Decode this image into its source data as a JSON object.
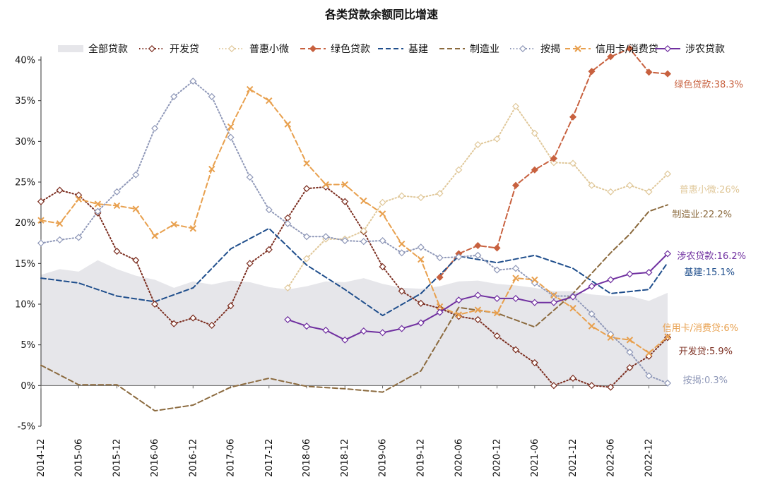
{
  "chart_data": {
    "type": "line",
    "title": "各类贷款余额同比增速",
    "xlabel": "",
    "ylabel": "",
    "ylim": [
      -5,
      40
    ],
    "y_ticks": [
      "-5%",
      "0%",
      "5%",
      "10%",
      "15%",
      "20%",
      "25%",
      "30%",
      "35%",
      "40%"
    ],
    "x_ticks": [
      "2014-12",
      "2015-06",
      "2015-12",
      "2016-06",
      "2016-12",
      "2017-06",
      "2017-12",
      "2018-06",
      "2018-12",
      "2019-06",
      "2019-12",
      "2020-06",
      "2020-12",
      "2021-06",
      "2021-12",
      "2022-06",
      "2022-12"
    ],
    "legend_position": "top",
    "grid": false,
    "series": [
      {
        "name": "全部贷款",
        "style": "area",
        "color": "#e6e6ea",
        "points": [
          [
            "2014-12",
            13.6
          ],
          [
            "2015-03",
            14.3
          ],
          [
            "2015-06",
            14.0
          ],
          [
            "2015-09",
            15.4
          ],
          [
            "2015-12",
            14.3
          ],
          [
            "2016-03",
            13.5
          ],
          [
            "2016-06",
            13.0
          ],
          [
            "2016-09",
            12.0
          ],
          [
            "2016-12",
            12.8
          ],
          [
            "2017-03",
            12.4
          ],
          [
            "2017-06",
            12.9
          ],
          [
            "2017-09",
            12.7
          ],
          [
            "2017-12",
            12.1
          ],
          [
            "2018-03",
            11.8
          ],
          [
            "2018-06",
            12.2
          ],
          [
            "2018-09",
            12.8
          ],
          [
            "2018-12",
            12.7
          ],
          [
            "2019-03",
            13.2
          ],
          [
            "2019-06",
            12.5
          ],
          [
            "2019-09",
            12.0
          ],
          [
            "2019-12",
            11.9
          ],
          [
            "2020-03",
            12.2
          ],
          [
            "2020-06",
            12.8
          ],
          [
            "2020-09",
            12.9
          ],
          [
            "2020-12",
            12.5
          ],
          [
            "2021-03",
            12.3
          ],
          [
            "2021-06",
            12.0
          ],
          [
            "2021-09",
            11.6
          ],
          [
            "2021-12",
            11.6
          ],
          [
            "2022-03",
            11.2
          ],
          [
            "2022-06",
            11.0
          ],
          [
            "2022-09",
            11.0
          ],
          [
            "2022-12",
            10.4
          ],
          [
            "2023-03",
            11.4
          ]
        ]
      },
      {
        "name": "开发贷",
        "style": "dotted",
        "marker": "diamond",
        "color": "#7b2d1f",
        "end_label": "开发贷:5.9%",
        "points": [
          [
            "2014-12",
            22.6
          ],
          [
            "2015-03",
            24.0
          ],
          [
            "2015-06",
            23.4
          ],
          [
            "2015-09",
            21.2
          ],
          [
            "2015-12",
            16.5
          ],
          [
            "2016-03",
            15.4
          ],
          [
            "2016-06",
            10.0
          ],
          [
            "2016-09",
            7.6
          ],
          [
            "2016-12",
            8.3
          ],
          [
            "2017-03",
            7.4
          ],
          [
            "2017-06",
            9.8
          ],
          [
            "2017-09",
            15.0
          ],
          [
            "2017-12",
            16.7
          ],
          [
            "2018-03",
            20.6
          ],
          [
            "2018-06",
            24.2
          ],
          [
            "2018-09",
            24.4
          ],
          [
            "2018-12",
            22.6
          ],
          [
            "2019-03",
            18.9
          ],
          [
            "2019-06",
            14.6
          ],
          [
            "2019-09",
            11.6
          ],
          [
            "2019-12",
            10.1
          ],
          [
            "2020-03",
            9.5
          ],
          [
            "2020-06",
            8.5
          ],
          [
            "2020-09",
            8.1
          ],
          [
            "2020-12",
            6.1
          ],
          [
            "2021-03",
            4.4
          ],
          [
            "2021-06",
            2.8
          ],
          [
            "2021-09",
            0.0
          ],
          [
            "2021-12",
            0.9
          ],
          [
            "2022-03",
            0.0
          ],
          [
            "2022-06",
            -0.2
          ],
          [
            "2022-09",
            2.2
          ],
          [
            "2022-12",
            3.6
          ],
          [
            "2023-03",
            5.9
          ]
        ]
      },
      {
        "name": "普惠小微",
        "style": "dotted",
        "marker": "diamond",
        "color": "#e0c89a",
        "end_label": "普惠小微:26%",
        "points": [
          [
            "2018-03",
            12.0
          ],
          [
            "2018-06",
            15.6
          ],
          [
            "2018-09",
            18.0
          ],
          [
            "2018-12",
            18.0
          ],
          [
            "2019-03",
            19.0
          ],
          [
            "2019-06",
            22.5
          ],
          [
            "2019-09",
            23.3
          ],
          [
            "2019-12",
            23.1
          ],
          [
            "2020-03",
            23.6
          ],
          [
            "2020-06",
            26.5
          ],
          [
            "2020-09",
            29.6
          ],
          [
            "2020-12",
            30.3
          ],
          [
            "2021-03",
            34.3
          ],
          [
            "2021-06",
            31.0
          ],
          [
            "2021-09",
            27.4
          ],
          [
            "2021-12",
            27.3
          ],
          [
            "2022-03",
            24.6
          ],
          [
            "2022-06",
            23.8
          ],
          [
            "2022-09",
            24.6
          ],
          [
            "2022-12",
            23.8
          ],
          [
            "2023-03",
            26.0
          ]
        ]
      },
      {
        "name": "绿色贷款",
        "style": "dashed",
        "marker": "diamond-filled",
        "color": "#c8613f",
        "end_label": "绿色贷款:38.3%",
        "points": [
          [
            "2020-03",
            13.3
          ],
          [
            "2020-06",
            16.2
          ],
          [
            "2020-09",
            17.2
          ],
          [
            "2020-12",
            16.9
          ],
          [
            "2021-03",
            24.6
          ],
          [
            "2021-06",
            26.5
          ],
          [
            "2021-09",
            27.9
          ],
          [
            "2021-12",
            33.0
          ],
          [
            "2022-03",
            38.6
          ],
          [
            "2022-06",
            40.4
          ],
          [
            "2022-09",
            41.4
          ],
          [
            "2022-12",
            38.5
          ],
          [
            "2023-03",
            38.3
          ]
        ]
      },
      {
        "name": "基建",
        "style": "dashed",
        "color": "#1f4e8c",
        "end_label": "基建:15.1%",
        "points": [
          [
            "2014-12",
            13.2
          ],
          [
            "2015-06",
            12.6
          ],
          [
            "2015-12",
            11.0
          ],
          [
            "2016-06",
            10.3
          ],
          [
            "2016-12",
            12.0
          ],
          [
            "2017-06",
            16.8
          ],
          [
            "2017-12",
            19.3
          ],
          [
            "2018-06",
            14.8
          ],
          [
            "2018-12",
            11.8
          ],
          [
            "2019-06",
            8.6
          ],
          [
            "2019-12",
            11.3
          ],
          [
            "2020-06",
            15.9
          ],
          [
            "2020-12",
            15.1
          ],
          [
            "2021-06",
            16.0
          ],
          [
            "2021-12",
            14.4
          ],
          [
            "2022-06",
            11.3
          ],
          [
            "2022-12",
            11.8
          ],
          [
            "2023-03",
            15.1
          ]
        ]
      },
      {
        "name": "制造业",
        "style": "dashed",
        "color": "#8b6a3e",
        "end_label": "制造业:22.2%",
        "points": [
          [
            "2014-12",
            2.5
          ],
          [
            "2015-06",
            0.1
          ],
          [
            "2015-12",
            0.1
          ],
          [
            "2016-06",
            -3.1
          ],
          [
            "2016-12",
            -2.4
          ],
          [
            "2017-06",
            -0.2
          ],
          [
            "2017-12",
            0.9
          ],
          [
            "2018-06",
            -0.1
          ],
          [
            "2018-12",
            -0.4
          ],
          [
            "2019-06",
            -0.8
          ],
          [
            "2019-12",
            1.8
          ],
          [
            "2020-06",
            9.6
          ],
          [
            "2020-12",
            8.9
          ],
          [
            "2021-06",
            7.2
          ],
          [
            "2021-12",
            11.3
          ],
          [
            "2022-06",
            16.3
          ],
          [
            "2022-09",
            18.6
          ],
          [
            "2022-12",
            21.4
          ],
          [
            "2023-03",
            22.2
          ]
        ]
      },
      {
        "name": "按揭",
        "style": "dotted",
        "marker": "diamond",
        "color": "#8f98b8",
        "end_label": "按揭:0.3%",
        "points": [
          [
            "2014-12",
            17.5
          ],
          [
            "2015-03",
            17.9
          ],
          [
            "2015-06",
            18.2
          ],
          [
            "2015-09",
            21.4
          ],
          [
            "2015-12",
            23.8
          ],
          [
            "2016-03",
            25.9
          ],
          [
            "2016-06",
            31.6
          ],
          [
            "2016-09",
            35.5
          ],
          [
            "2016-12",
            37.4
          ],
          [
            "2017-03",
            35.5
          ],
          [
            "2017-06",
            30.5
          ],
          [
            "2017-09",
            25.6
          ],
          [
            "2017-12",
            21.6
          ],
          [
            "2018-03",
            19.9
          ],
          [
            "2018-06",
            18.3
          ],
          [
            "2018-09",
            18.3
          ],
          [
            "2018-12",
            17.8
          ],
          [
            "2019-03",
            17.7
          ],
          [
            "2019-06",
            17.8
          ],
          [
            "2019-09",
            16.3
          ],
          [
            "2019-12",
            17.0
          ],
          [
            "2020-03",
            15.7
          ],
          [
            "2020-06",
            15.8
          ],
          [
            "2020-09",
            16.0
          ],
          [
            "2020-12",
            14.2
          ],
          [
            "2021-03",
            14.4
          ],
          [
            "2021-06",
            12.6
          ],
          [
            "2021-09",
            11.0
          ],
          [
            "2021-12",
            11.0
          ],
          [
            "2022-03",
            8.8
          ],
          [
            "2022-06",
            6.3
          ],
          [
            "2022-09",
            4.1
          ],
          [
            "2022-12",
            1.2
          ],
          [
            "2023-03",
            0.3
          ]
        ]
      },
      {
        "name": "信用卡/消费贷",
        "style": "dashed",
        "marker": "x",
        "color": "#e8a04e",
        "end_label": "信用卡/消费贷:6%",
        "points": [
          [
            "2014-12",
            20.3
          ],
          [
            "2015-03",
            19.9
          ],
          [
            "2015-06",
            22.9
          ],
          [
            "2015-09",
            22.3
          ],
          [
            "2015-12",
            22.1
          ],
          [
            "2016-03",
            21.7
          ],
          [
            "2016-06",
            18.4
          ],
          [
            "2016-09",
            19.8
          ],
          [
            "2016-12",
            19.3
          ],
          [
            "2017-03",
            26.6
          ],
          [
            "2017-06",
            31.8
          ],
          [
            "2017-09",
            36.4
          ],
          [
            "2017-12",
            35.0
          ],
          [
            "2018-03",
            32.1
          ],
          [
            "2018-06",
            27.3
          ],
          [
            "2018-09",
            24.7
          ],
          [
            "2018-12",
            24.7
          ],
          [
            "2019-03",
            22.7
          ],
          [
            "2019-06",
            21.1
          ],
          [
            "2019-09",
            17.4
          ],
          [
            "2019-12",
            15.5
          ],
          [
            "2020-03",
            9.7
          ],
          [
            "2020-06",
            8.7
          ],
          [
            "2020-09",
            9.3
          ],
          [
            "2020-12",
            8.9
          ],
          [
            "2021-03",
            13.2
          ],
          [
            "2021-06",
            13.0
          ],
          [
            "2021-09",
            11.1
          ],
          [
            "2021-12",
            9.5
          ],
          [
            "2022-03",
            7.3
          ],
          [
            "2022-06",
            5.9
          ],
          [
            "2022-09",
            5.6
          ],
          [
            "2022-12",
            4.0
          ],
          [
            "2023-03",
            6.0
          ]
        ]
      },
      {
        "name": "涉农贷款",
        "style": "solid",
        "marker": "diamond",
        "color": "#7030a0",
        "end_label": "涉农贷款:16.2%",
        "points": [
          [
            "2018-03",
            8.1
          ],
          [
            "2018-06",
            7.3
          ],
          [
            "2018-09",
            6.8
          ],
          [
            "2018-12",
            5.6
          ],
          [
            "2019-03",
            6.7
          ],
          [
            "2019-06",
            6.5
          ],
          [
            "2019-09",
            7.0
          ],
          [
            "2019-12",
            7.7
          ],
          [
            "2020-03",
            9.0
          ],
          [
            "2020-06",
            10.5
          ],
          [
            "2020-09",
            11.1
          ],
          [
            "2020-12",
            10.7
          ],
          [
            "2021-03",
            10.7
          ],
          [
            "2021-06",
            10.2
          ],
          [
            "2021-09",
            10.2
          ],
          [
            "2021-12",
            10.9
          ],
          [
            "2022-03",
            12.2
          ],
          [
            "2022-06",
            13.0
          ],
          [
            "2022-09",
            13.7
          ],
          [
            "2022-12",
            13.9
          ],
          [
            "2023-03",
            16.2
          ]
        ]
      }
    ]
  }
}
